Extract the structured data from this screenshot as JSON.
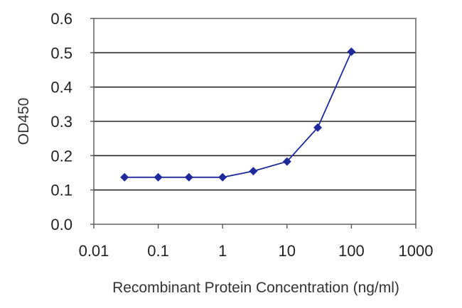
{
  "chart_data": {
    "type": "line",
    "title": "",
    "xlabel": "Recombinant Protein Concentration (ng/ml)",
    "ylabel": "OD450",
    "x_scale": "log",
    "xlim": [
      0.01,
      1000
    ],
    "ylim": [
      0,
      0.6
    ],
    "x_ticks": [
      "0.01",
      "0.1",
      "1",
      "10",
      "100",
      "1000"
    ],
    "x_tick_values": [
      0.01,
      0.1,
      1,
      10,
      100,
      1000
    ],
    "y_ticks": [
      "0.0",
      "0.1",
      "0.2",
      "0.3",
      "0.4",
      "0.5",
      "0.6"
    ],
    "y_tick_values": [
      0,
      0.1,
      0.2,
      0.3,
      0.4,
      0.5,
      0.6
    ],
    "grid": "horizontal",
    "legend": "none",
    "series": [
      {
        "color": "#1f2a9a",
        "marker": "diamond",
        "x": [
          0.03,
          0.1,
          0.3,
          1,
          3,
          10,
          30,
          100
        ],
        "y": [
          0.137,
          0.137,
          0.137,
          0.137,
          0.155,
          0.183,
          0.282,
          0.503
        ]
      }
    ]
  }
}
